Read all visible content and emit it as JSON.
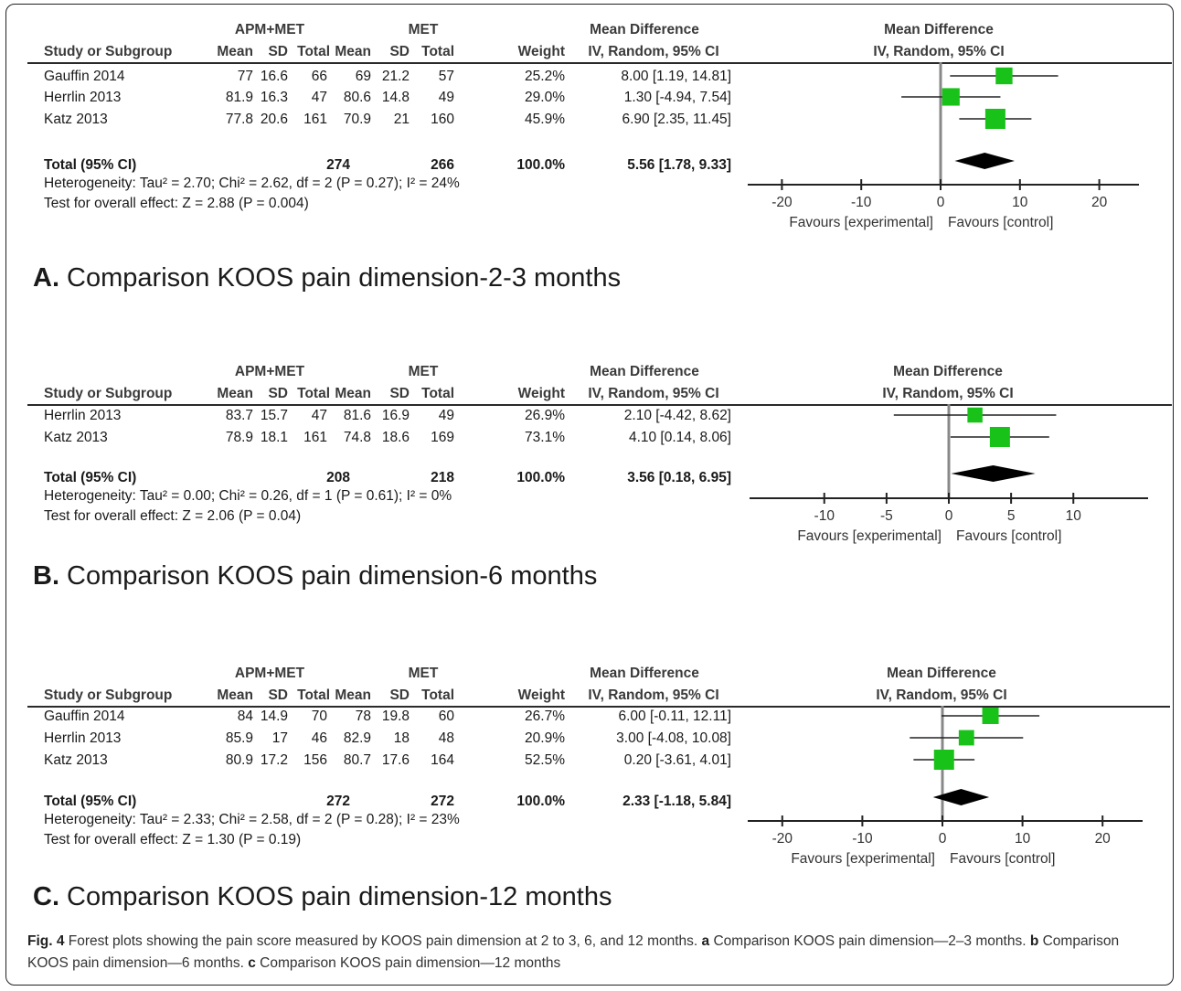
{
  "caption": {
    "fig_label": "Fig. 4",
    "text": "Forest plots showing the pain score measured by KOOS pain dimension at 2 to 3, 6, and 12 months.",
    "a_label": "a",
    "a_text": "Comparison KOOS pain dimension—2–3 months.",
    "b_label": "b",
    "b_text": "Comparison KOOS pain dimension—6 months.",
    "c_label": "c",
    "c_text": "Comparison KOOS pain dimension—12 months"
  },
  "colors": {
    "marker": "#19c219",
    "line": "#222222",
    "axis": "#888888"
  },
  "chart_data": [
    {
      "type": "forest",
      "panel_letter": "A.",
      "title": "Comparison KOOS pain dimension-2-3 months",
      "group1": "APM+MET",
      "group2": "MET",
      "md_header_1": "Mean Difference",
      "md_header_2": "IV, Random, 95% CI",
      "columns": [
        "Study or Subgroup",
        "Mean",
        "SD",
        "Total",
        "Mean",
        "SD",
        "Total",
        "Weight",
        "IV, Random, 95% CI"
      ],
      "studies": [
        {
          "name": "Gauffin 2014",
          "m1": "77",
          "sd1": "16.6",
          "n1": "66",
          "m2": "69",
          "sd2": "21.2",
          "n2": "57",
          "weight": "25.2%",
          "ci_text": "8.00 [1.19, 14.81]",
          "md": 8.0,
          "lo": 1.19,
          "hi": 14.81,
          "w": 25.2
        },
        {
          "name": "Herrlin 2013",
          "m1": "81.9",
          "sd1": "16.3",
          "n1": "47",
          "m2": "80.6",
          "sd2": "14.8",
          "n2": "49",
          "weight": "29.0%",
          "ci_text": "1.30 [-4.94, 7.54]",
          "md": 1.3,
          "lo": -4.94,
          "hi": 7.54,
          "w": 29.0
        },
        {
          "name": "Katz 2013",
          "m1": "77.8",
          "sd1": "20.6",
          "n1": "161",
          "m2": "70.9",
          "sd2": "21",
          "n2": "160",
          "weight": "45.9%",
          "ci_text": "6.90 [2.35, 11.45]",
          "md": 6.9,
          "lo": 2.35,
          "hi": 11.45,
          "w": 45.9
        }
      ],
      "total": {
        "label": "Total (95% CI)",
        "n1": "274",
        "n2": "266",
        "weight": "100.0%",
        "ci_text": "5.56 [1.78, 9.33]",
        "md": 5.56,
        "lo": 1.78,
        "hi": 9.33
      },
      "heterogeneity": "Heterogeneity: Tau² = 2.70; Chi² = 2.62, df = 2 (P = 0.27); I² = 24%",
      "overall": "Test for overall effect: Z = 2.88 (P = 0.004)",
      "xlim": [
        -25,
        25
      ],
      "ticks": [
        -20,
        -10,
        0,
        10,
        20
      ],
      "favours_left": "Favours [experimental]",
      "favours_right": "Favours [control]"
    },
    {
      "type": "forest",
      "panel_letter": "B.",
      "title": "Comparison KOOS pain dimension-6 months",
      "group1": "APM+MET",
      "group2": "MET",
      "md_header_1": "Mean Difference",
      "md_header_2": "IV, Random, 95% CI",
      "columns": [
        "Study or Subgroup",
        "Mean",
        "SD",
        "Total",
        "Mean",
        "SD",
        "Total",
        "Weight",
        "IV, Random, 95% CI"
      ],
      "studies": [
        {
          "name": "Herrlin 2013",
          "m1": "83.7",
          "sd1": "15.7",
          "n1": "47",
          "m2": "81.6",
          "sd2": "16.9",
          "n2": "49",
          "weight": "26.9%",
          "ci_text": "2.10 [-4.42, 8.62]",
          "md": 2.1,
          "lo": -4.42,
          "hi": 8.62,
          "w": 26.9
        },
        {
          "name": "Katz 2013",
          "m1": "78.9",
          "sd1": "18.1",
          "n1": "161",
          "m2": "74.8",
          "sd2": "18.6",
          "n2": "169",
          "weight": "73.1%",
          "ci_text": "4.10 [0.14, 8.06]",
          "md": 4.1,
          "lo": 0.14,
          "hi": 8.06,
          "w": 73.1
        }
      ],
      "total": {
        "label": "Total (95% CI)",
        "n1": "208",
        "n2": "218",
        "weight": "100.0%",
        "ci_text": "3.56 [0.18, 6.95]",
        "md": 3.56,
        "lo": 0.18,
        "hi": 6.95
      },
      "heterogeneity": "Heterogeneity: Tau² = 0.00; Chi² = 0.26, df = 1 (P = 0.61); I² = 0%",
      "overall": "Test for overall effect: Z = 2.06 (P = 0.04)",
      "xlim": [
        -16,
        16
      ],
      "ticks": [
        -10,
        -5,
        0,
        5,
        10
      ],
      "favours_left": "Favours [experimental]",
      "favours_right": "Favours [control]"
    },
    {
      "type": "forest",
      "panel_letter": "C.",
      "title": "Comparison KOOS pain dimension-12 months",
      "group1": "APM+MET",
      "group2": "MET",
      "md_header_1": "Mean Difference",
      "md_header_2": "IV, Random, 95% CI",
      "columns": [
        "Study or Subgroup",
        "Mean",
        "SD",
        "Total",
        "Mean",
        "SD",
        "Total",
        "Weight",
        "IV, Random, 95% CI"
      ],
      "studies": [
        {
          "name": "Gauffin 2014",
          "m1": "84",
          "sd1": "14.9",
          "n1": "70",
          "m2": "78",
          "sd2": "19.8",
          "n2": "60",
          "weight": "26.7%",
          "ci_text": "6.00 [-0.11, 12.11]",
          "md": 6.0,
          "lo": -0.11,
          "hi": 12.11,
          "w": 26.7
        },
        {
          "name": "Herrlin 2013",
          "m1": "85.9",
          "sd1": "17",
          "n1": "46",
          "m2": "82.9",
          "sd2": "18",
          "n2": "48",
          "weight": "20.9%",
          "ci_text": "3.00 [-4.08, 10.08]",
          "md": 3.0,
          "lo": -4.08,
          "hi": 10.08,
          "w": 20.9
        },
        {
          "name": "Katz 2013",
          "m1": "80.9",
          "sd1": "17.2",
          "n1": "156",
          "m2": "80.7",
          "sd2": "17.6",
          "n2": "164",
          "weight": "52.5%",
          "ci_text": "0.20 [-3.61, 4.01]",
          "md": 0.2,
          "lo": -3.61,
          "hi": 4.01,
          "w": 52.5
        }
      ],
      "total": {
        "label": "Total (95% CI)",
        "n1": "272",
        "n2": "272",
        "weight": "100.0%",
        "ci_text": "2.33 [-1.18, 5.84]",
        "md": 2.33,
        "lo": -1.18,
        "hi": 5.84
      },
      "heterogeneity": "Heterogeneity: Tau² = 2.33; Chi² = 2.58, df = 2 (P = 0.28); I² = 23%",
      "overall": "Test for overall effect: Z = 1.30 (P = 0.19)",
      "xlim": [
        -25,
        25
      ],
      "ticks": [
        -20,
        -10,
        0,
        10,
        20
      ],
      "favours_left": "Favours [experimental]",
      "favours_right": "Favours [control]"
    }
  ]
}
